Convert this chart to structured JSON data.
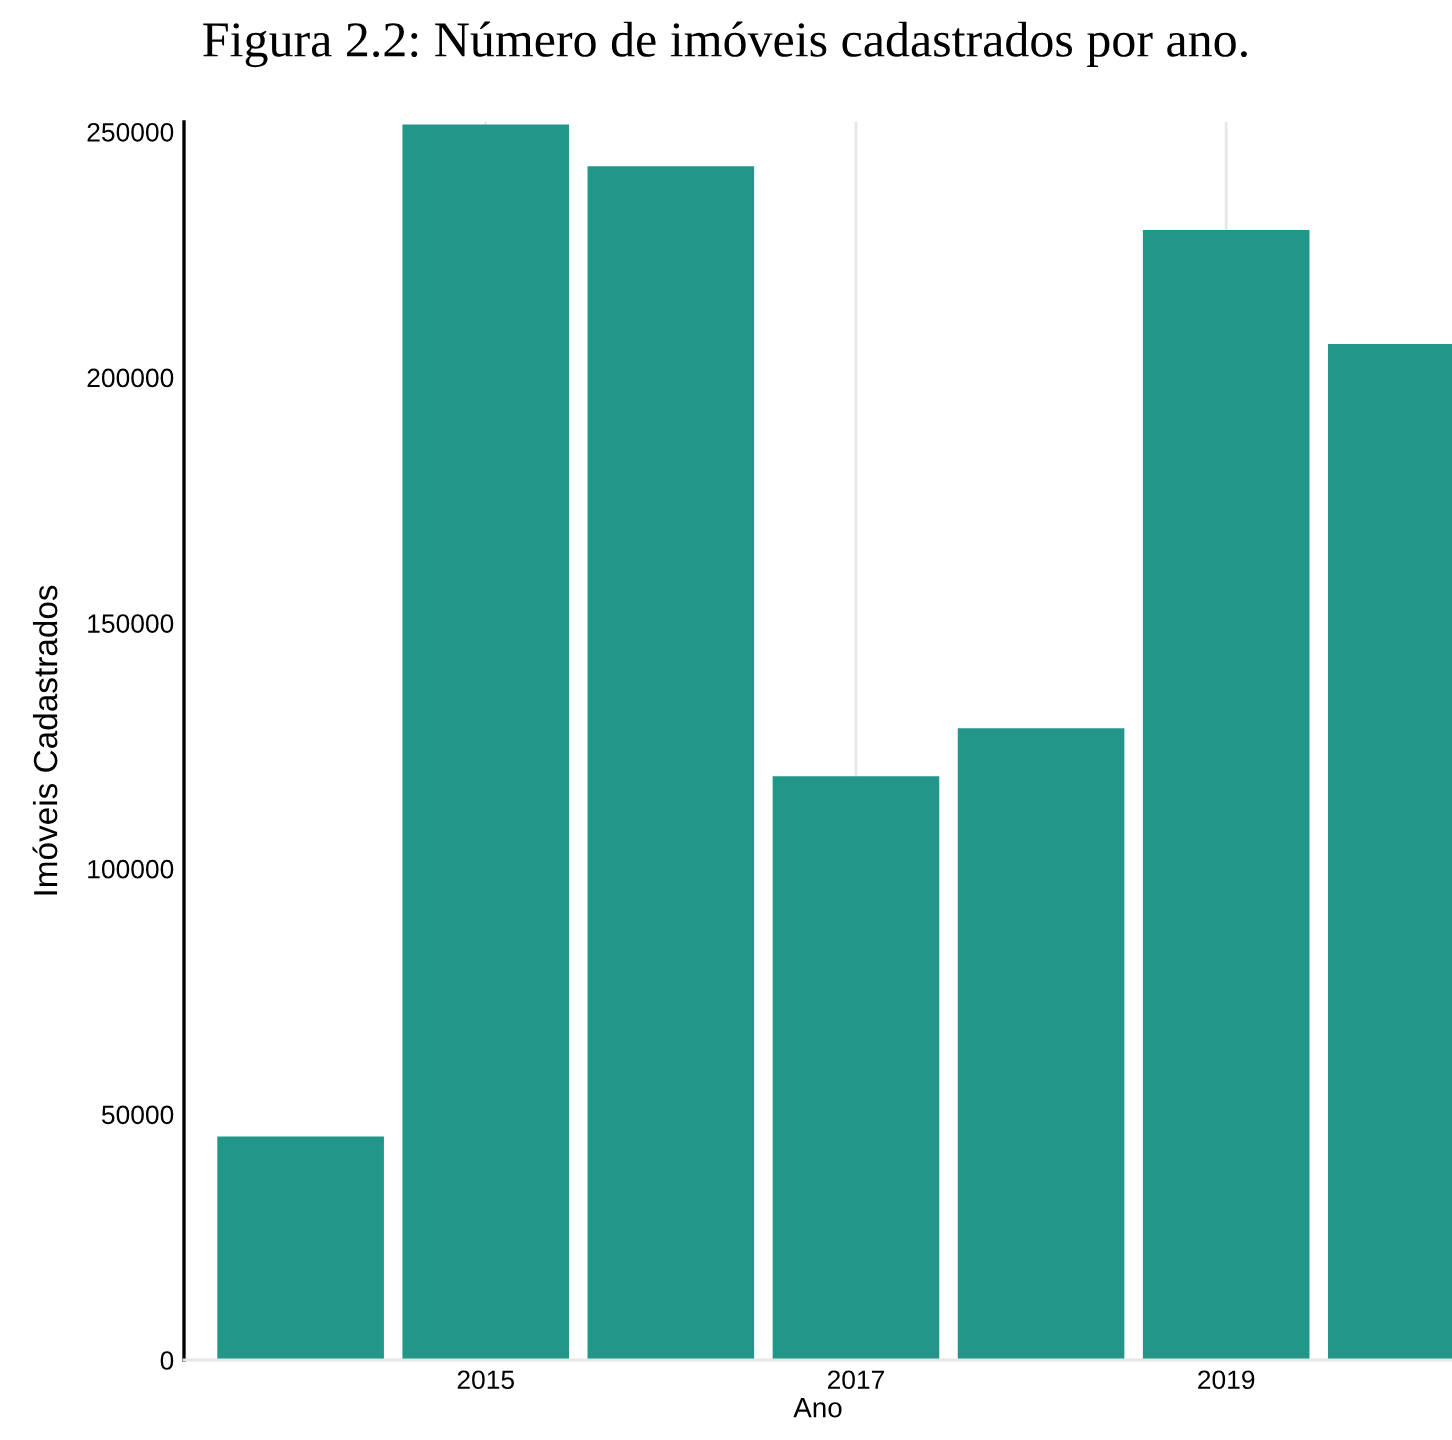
{
  "chart_data": {
    "type": "bar",
    "title": "Figura 2.2: Número de imóveis cadastrados por ano.",
    "xlabel": "Ano",
    "ylabel": "Imóveis Cadastrados",
    "x": [
      2014,
      2015,
      2016,
      2017,
      2018,
      2019,
      2020
    ],
    "values": [
      45500,
      251500,
      243000,
      118800,
      128600,
      230000,
      206800
    ],
    "color": "#219689",
    "xlim": [
      2013.37,
      2020.22
    ],
    "xticks": [
      2015,
      2017,
      2019
    ],
    "ylim": [
      0,
      252000
    ],
    "yticks": [
      0,
      50000,
      100000,
      150000,
      200000,
      250000
    ],
    "grid": "x"
  }
}
